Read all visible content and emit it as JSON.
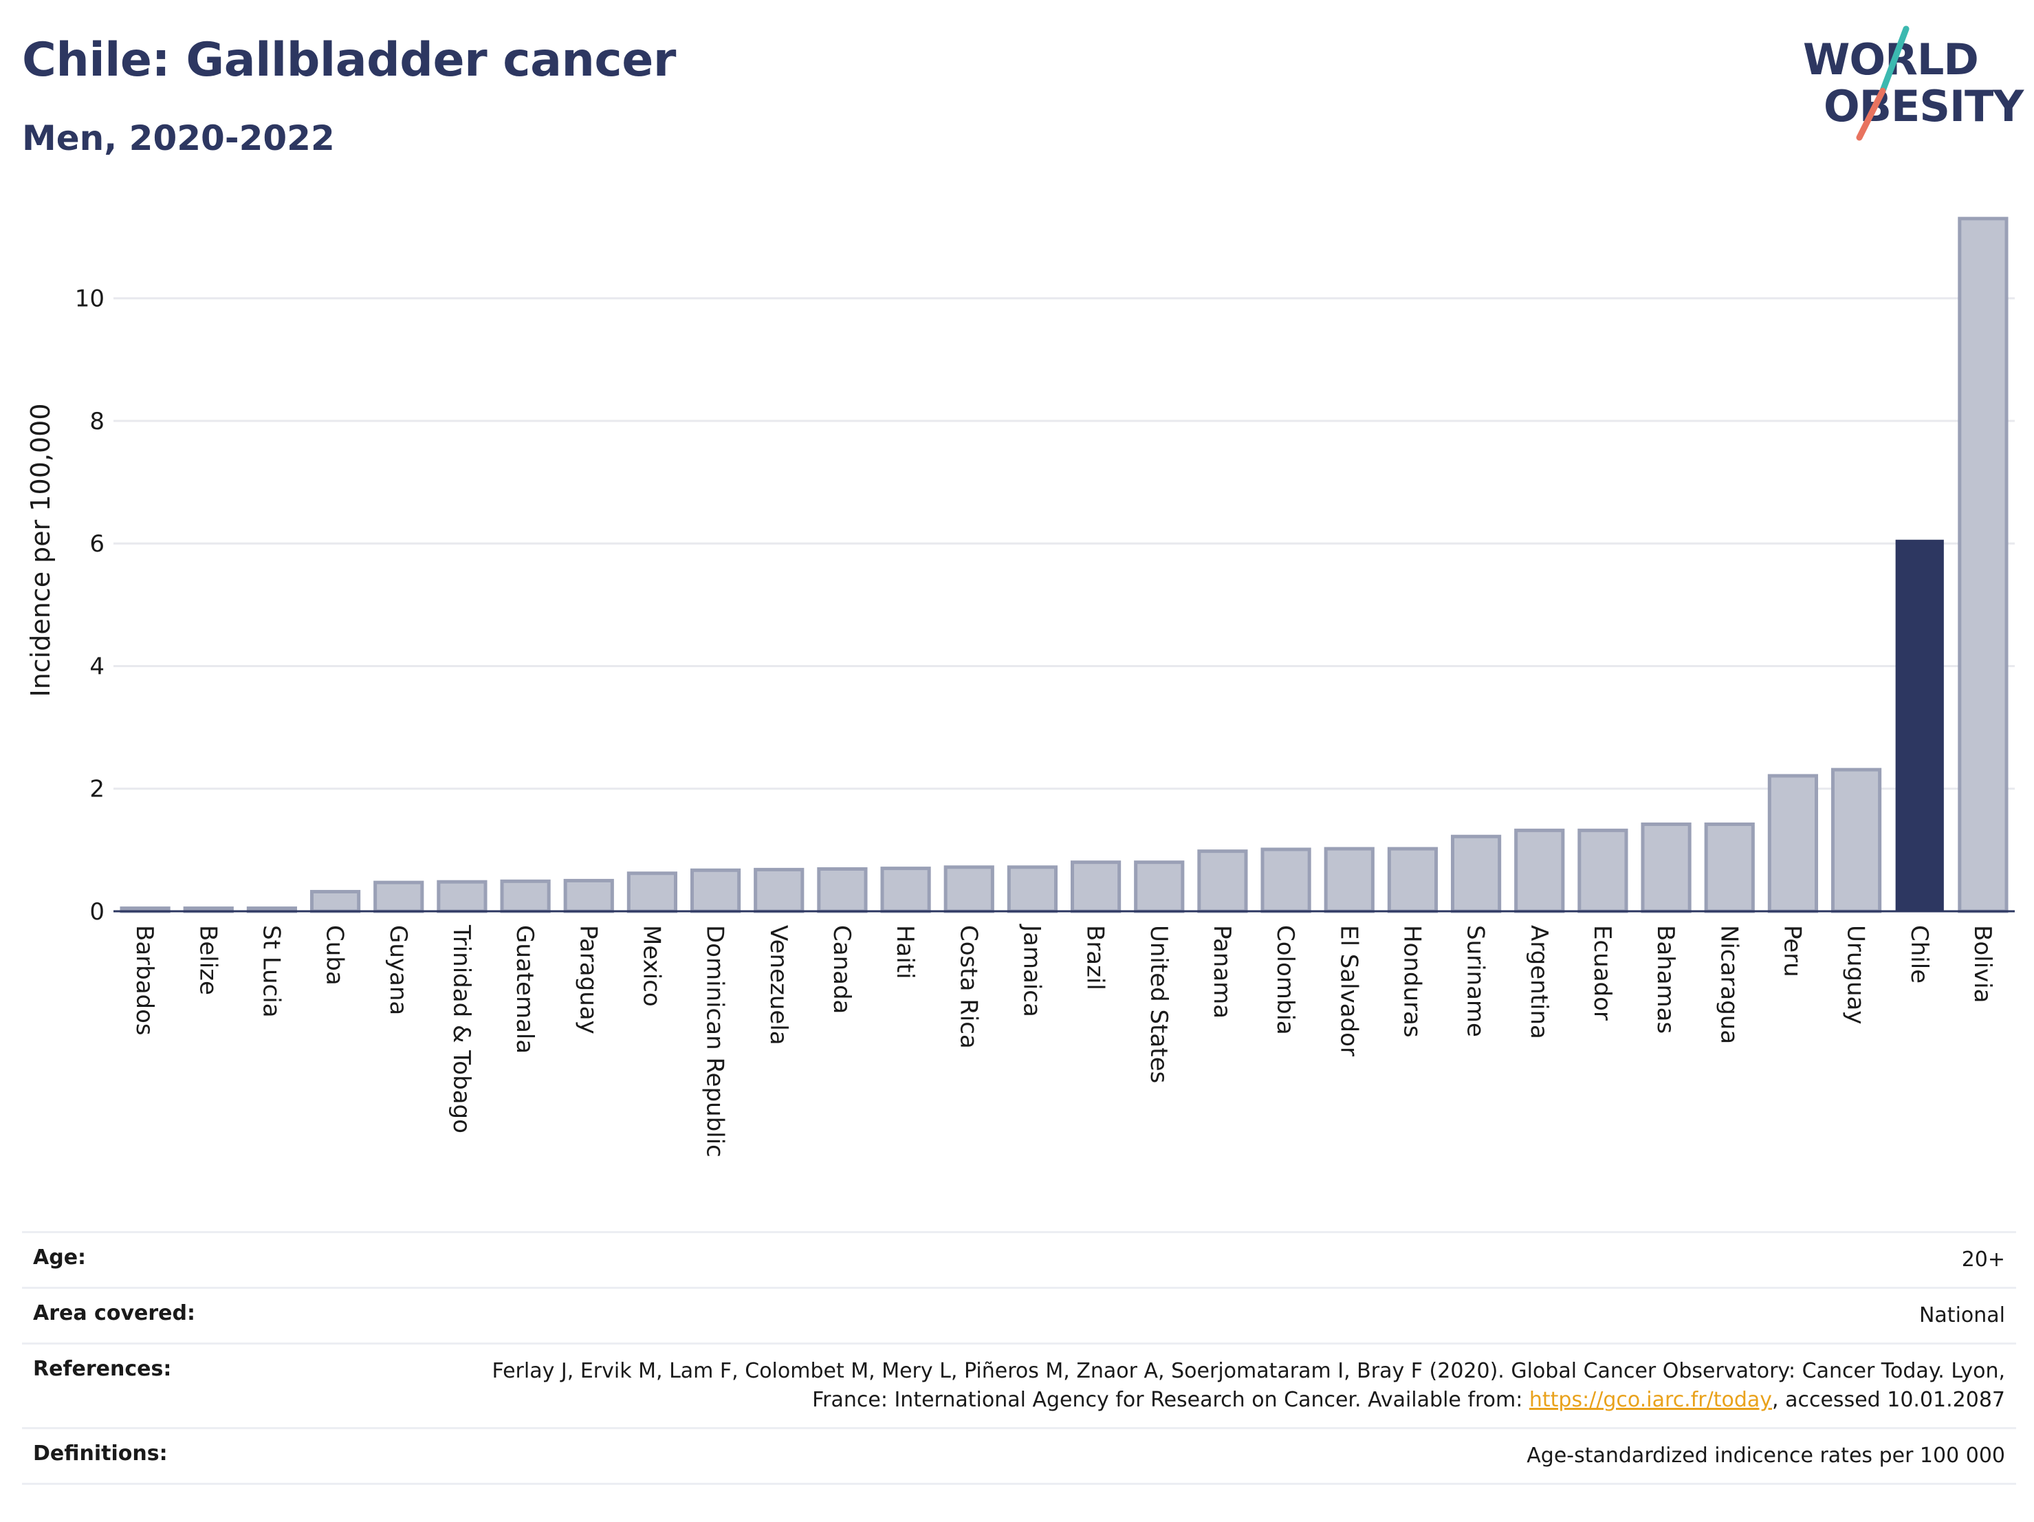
{
  "header": {
    "title": "Chile: Gallbladder cancer",
    "subtitle": "Men, 2020-2022"
  },
  "logo": {
    "line1": "WORLD",
    "line2": "OBESITY",
    "text_color": "#2d3761",
    "slash_colors": [
      "#3cb9b0",
      "#e8735f"
    ]
  },
  "chart_data": {
    "type": "bar",
    "title": "",
    "xlabel": "",
    "ylabel": "Incidence per 100,000",
    "ylim": [
      0,
      11.5
    ],
    "yticks": [
      0,
      2,
      4,
      6,
      8,
      10
    ],
    "grid": true,
    "categories": [
      "Barbados",
      "Belize",
      "St Lucia",
      "Cuba",
      "Guyana",
      "Trinidad & Tobago",
      "Guatemala",
      "Paraguay",
      "Mexico",
      "Dominican Republic",
      "Venezuela",
      "Canada",
      "Haiti",
      "Costa Rica",
      "Jamaica",
      "Brazil",
      "United States",
      "Panama",
      "Colombia",
      "El Salvador",
      "Honduras",
      "Suriname",
      "Argentina",
      "Ecuador",
      "Bahamas",
      "Nicaragua",
      "Peru",
      "Uruguay",
      "Chile",
      "Bolivia"
    ],
    "values": [
      0.05,
      0.05,
      0.05,
      0.32,
      0.47,
      0.48,
      0.49,
      0.5,
      0.62,
      0.67,
      0.68,
      0.69,
      0.7,
      0.72,
      0.72,
      0.8,
      0.8,
      0.98,
      1.01,
      1.02,
      1.02,
      1.22,
      1.32,
      1.32,
      1.42,
      1.42,
      2.21,
      2.31,
      6.05,
      11.3
    ],
    "highlight": "Chile",
    "colors": {
      "bar": "#bfc3d0",
      "bar_edge": "#9aa0b6",
      "highlight": "#2d3761",
      "grid": "#e8e9ee",
      "axis": "#2d3761",
      "tick_text": "#1a1a1a"
    }
  },
  "info": {
    "rows": [
      {
        "label": "Age:",
        "value": "20+"
      },
      {
        "label": "Area covered:",
        "value": "National"
      },
      {
        "label": "References:",
        "value": "Ferlay J, Ervik M, Lam F, Colombet M, Mery L, Piñeros M, Znaor A, Soerjomataram I, Bray F (2020). Global Cancer Observatory: Cancer Today. Lyon, France: International Agency for Research on Cancer. Available from: ",
        "link": "https://gco.iarc.fr/today",
        "suffix": ", accessed 10.01.2087"
      },
      {
        "label": "Definitions:",
        "value": "Age-standardized indicence rates per 100 000"
      }
    ]
  }
}
